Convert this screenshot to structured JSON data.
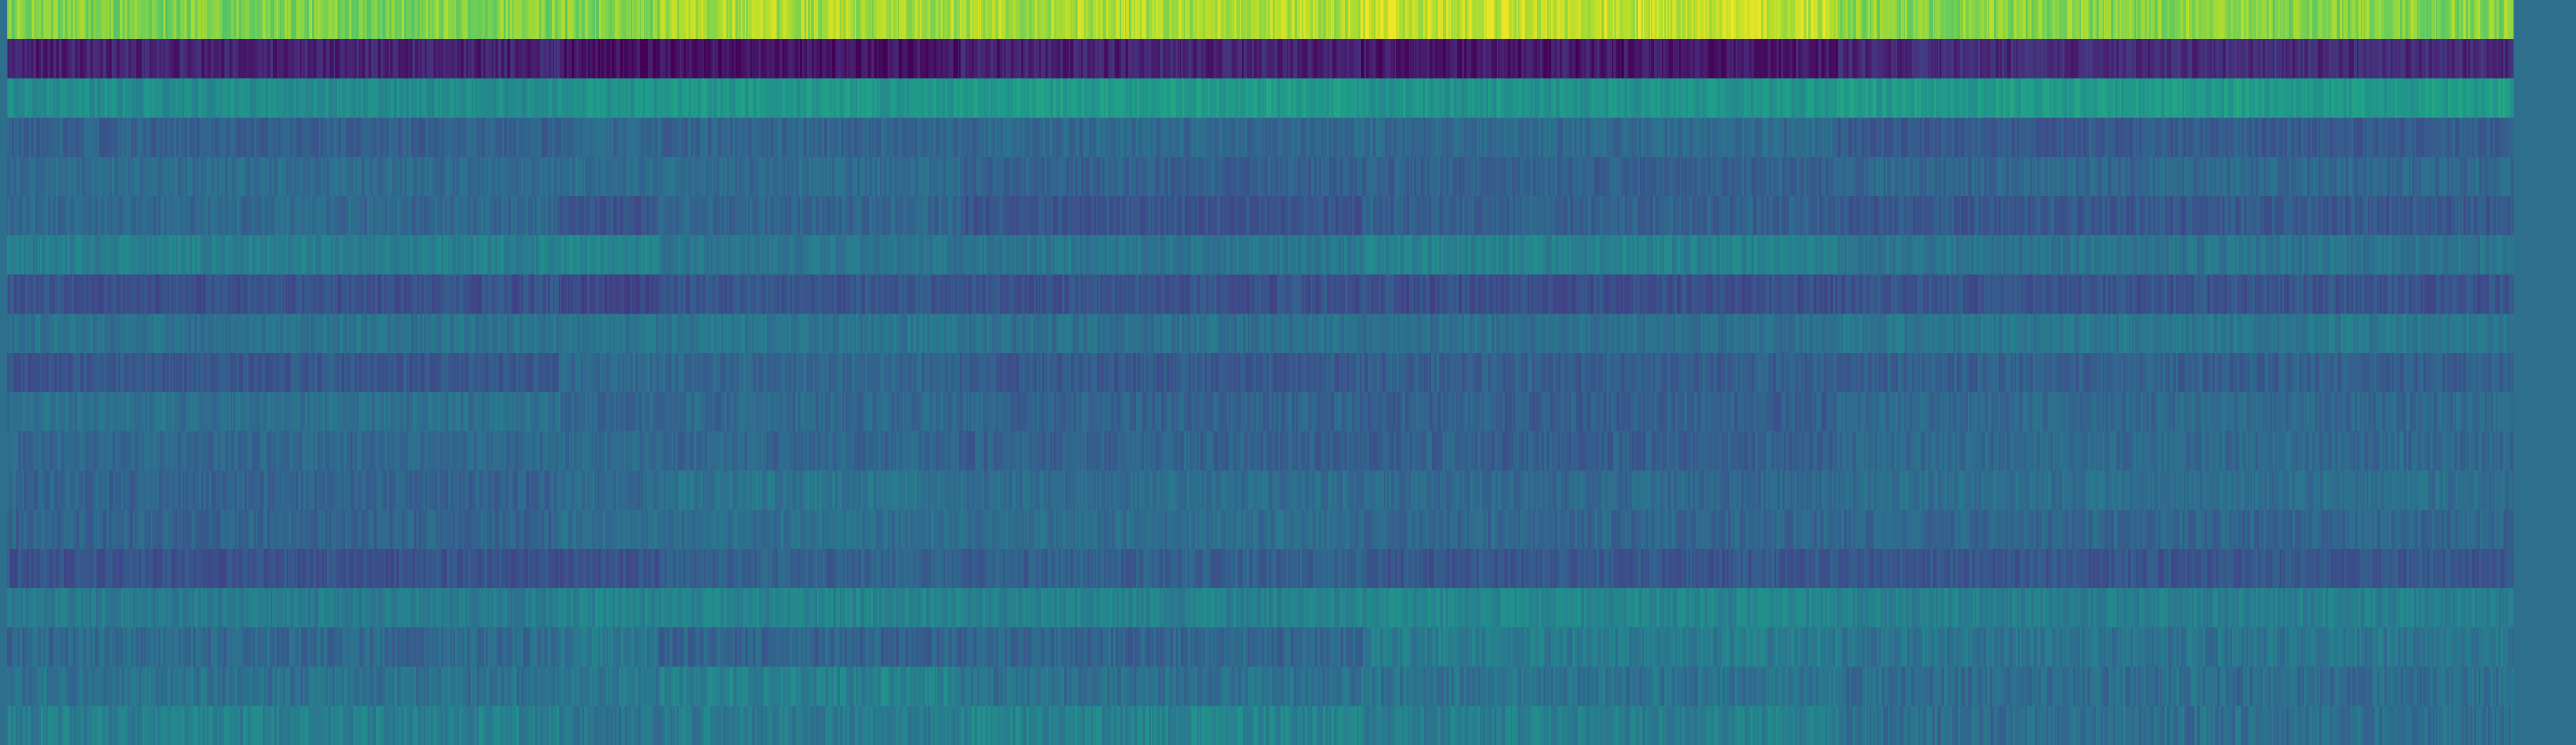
{
  "chart_data": {
    "type": "heatmap",
    "title": "",
    "xlabel": "",
    "ylabel": "",
    "colormap": "viridis",
    "value_range": [
      0,
      1
    ],
    "n_columns": 4800,
    "axes_visible": false,
    "grid": false,
    "legend": "none",
    "segment_boundaries": [
      0.0,
      0.22,
      0.26,
      0.38,
      0.54,
      0.73,
      1.0
    ],
    "rows": [
      {
        "index": 0,
        "mean": 0.86,
        "spread": 0.07
      },
      {
        "index": 1,
        "mean": 0.09,
        "spread": 0.06
      },
      {
        "index": 2,
        "mean": 0.52,
        "spread": 0.05
      },
      {
        "index": 3,
        "mean": 0.31,
        "spread": 0.05
      },
      {
        "index": 4,
        "mean": 0.33,
        "spread": 0.05
      },
      {
        "index": 5,
        "mean": 0.3,
        "spread": 0.05
      },
      {
        "index": 6,
        "mean": 0.42,
        "spread": 0.05
      },
      {
        "index": 7,
        "mean": 0.24,
        "spread": 0.05
      },
      {
        "index": 8,
        "mean": 0.36,
        "spread": 0.05
      },
      {
        "index": 9,
        "mean": 0.31,
        "spread": 0.05
      },
      {
        "index": 10,
        "mean": 0.33,
        "spread": 0.05
      },
      {
        "index": 11,
        "mean": 0.34,
        "spread": 0.05
      },
      {
        "index": 12,
        "mean": 0.35,
        "spread": 0.05
      },
      {
        "index": 13,
        "mean": 0.34,
        "spread": 0.05
      },
      {
        "index": 14,
        "mean": 0.27,
        "spread": 0.05
      },
      {
        "index": 15,
        "mean": 0.42,
        "spread": 0.05
      },
      {
        "index": 16,
        "mean": 0.37,
        "spread": 0.06
      },
      {
        "index": 17,
        "mean": 0.4,
        "spread": 0.06
      },
      {
        "index": 18,
        "mean": 0.4,
        "spread": 0.06
      }
    ]
  },
  "colors": {
    "background": "#2e6f8e",
    "viridis_stops": [
      "#440154",
      "#482878",
      "#3e4989",
      "#31688e",
      "#26828e",
      "#1f9e89",
      "#35b779",
      "#6ece58",
      "#b5de2b",
      "#fde725"
    ]
  }
}
